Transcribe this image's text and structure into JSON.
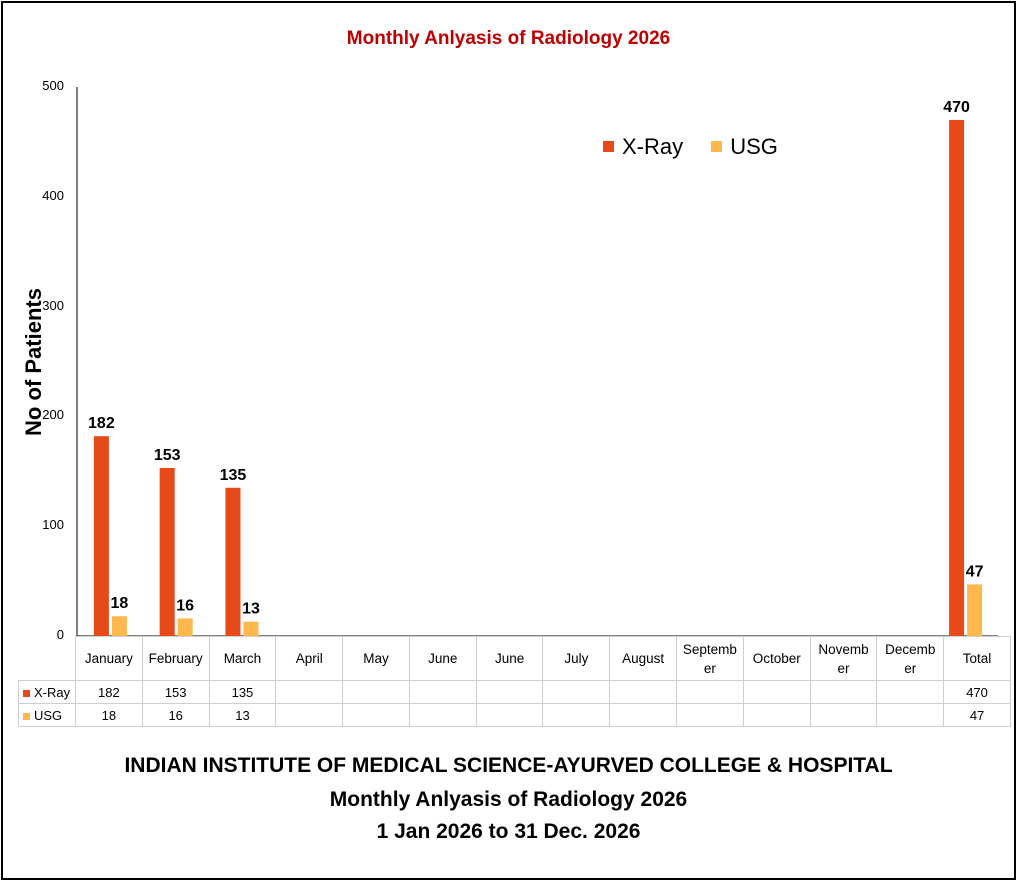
{
  "chart_data": {
    "type": "bar",
    "title": "Monthly Anlyasis of Radiology  2026",
    "ylabel": "No of Patients",
    "xlabel": "",
    "ylim": [
      0,
      500
    ],
    "yticks": [
      "0",
      "100",
      "200",
      "300",
      "400",
      "500"
    ],
    "categories": [
      "January",
      "February",
      "March",
      "April",
      "May",
      "June",
      "June",
      "July",
      "August",
      "Septemb er",
      "October",
      "Novemb er",
      "Decemb er",
      "Total"
    ],
    "series": [
      {
        "name": "X-Ray",
        "color": "#e64a19",
        "values": [
          182,
          153,
          135,
          null,
          null,
          null,
          null,
          null,
          null,
          null,
          null,
          null,
          null,
          470
        ],
        "labels": [
          "182",
          "153",
          "135",
          "",
          "",
          "",
          "",
          "",
          "",
          "",
          "",
          "",
          "",
          "470"
        ]
      },
      {
        "name": "USG",
        "color": "#ffb84d",
        "values": [
          18,
          16,
          13,
          null,
          null,
          null,
          null,
          null,
          null,
          null,
          null,
          null,
          null,
          47
        ],
        "labels": [
          "18",
          "16",
          "13",
          "",
          "",
          "",
          "",
          "",
          "",
          "",
          "",
          "",
          "",
          "47"
        ]
      }
    ],
    "legend_position": "top-right",
    "data_table": true
  },
  "colors": {
    "title": "#c00000",
    "axis": "#000000",
    "grid": "#cfcfcf"
  },
  "footer": {
    "line1": "INDIAN INSTITUTE OF MEDICAL SCIENCE-AYURVED COLLEGE & HOSPITAL",
    "line2": "Monthly Anlyasis of Radiology  2026",
    "line3": "1 Jan 2026 to 31 Dec. 2026"
  }
}
